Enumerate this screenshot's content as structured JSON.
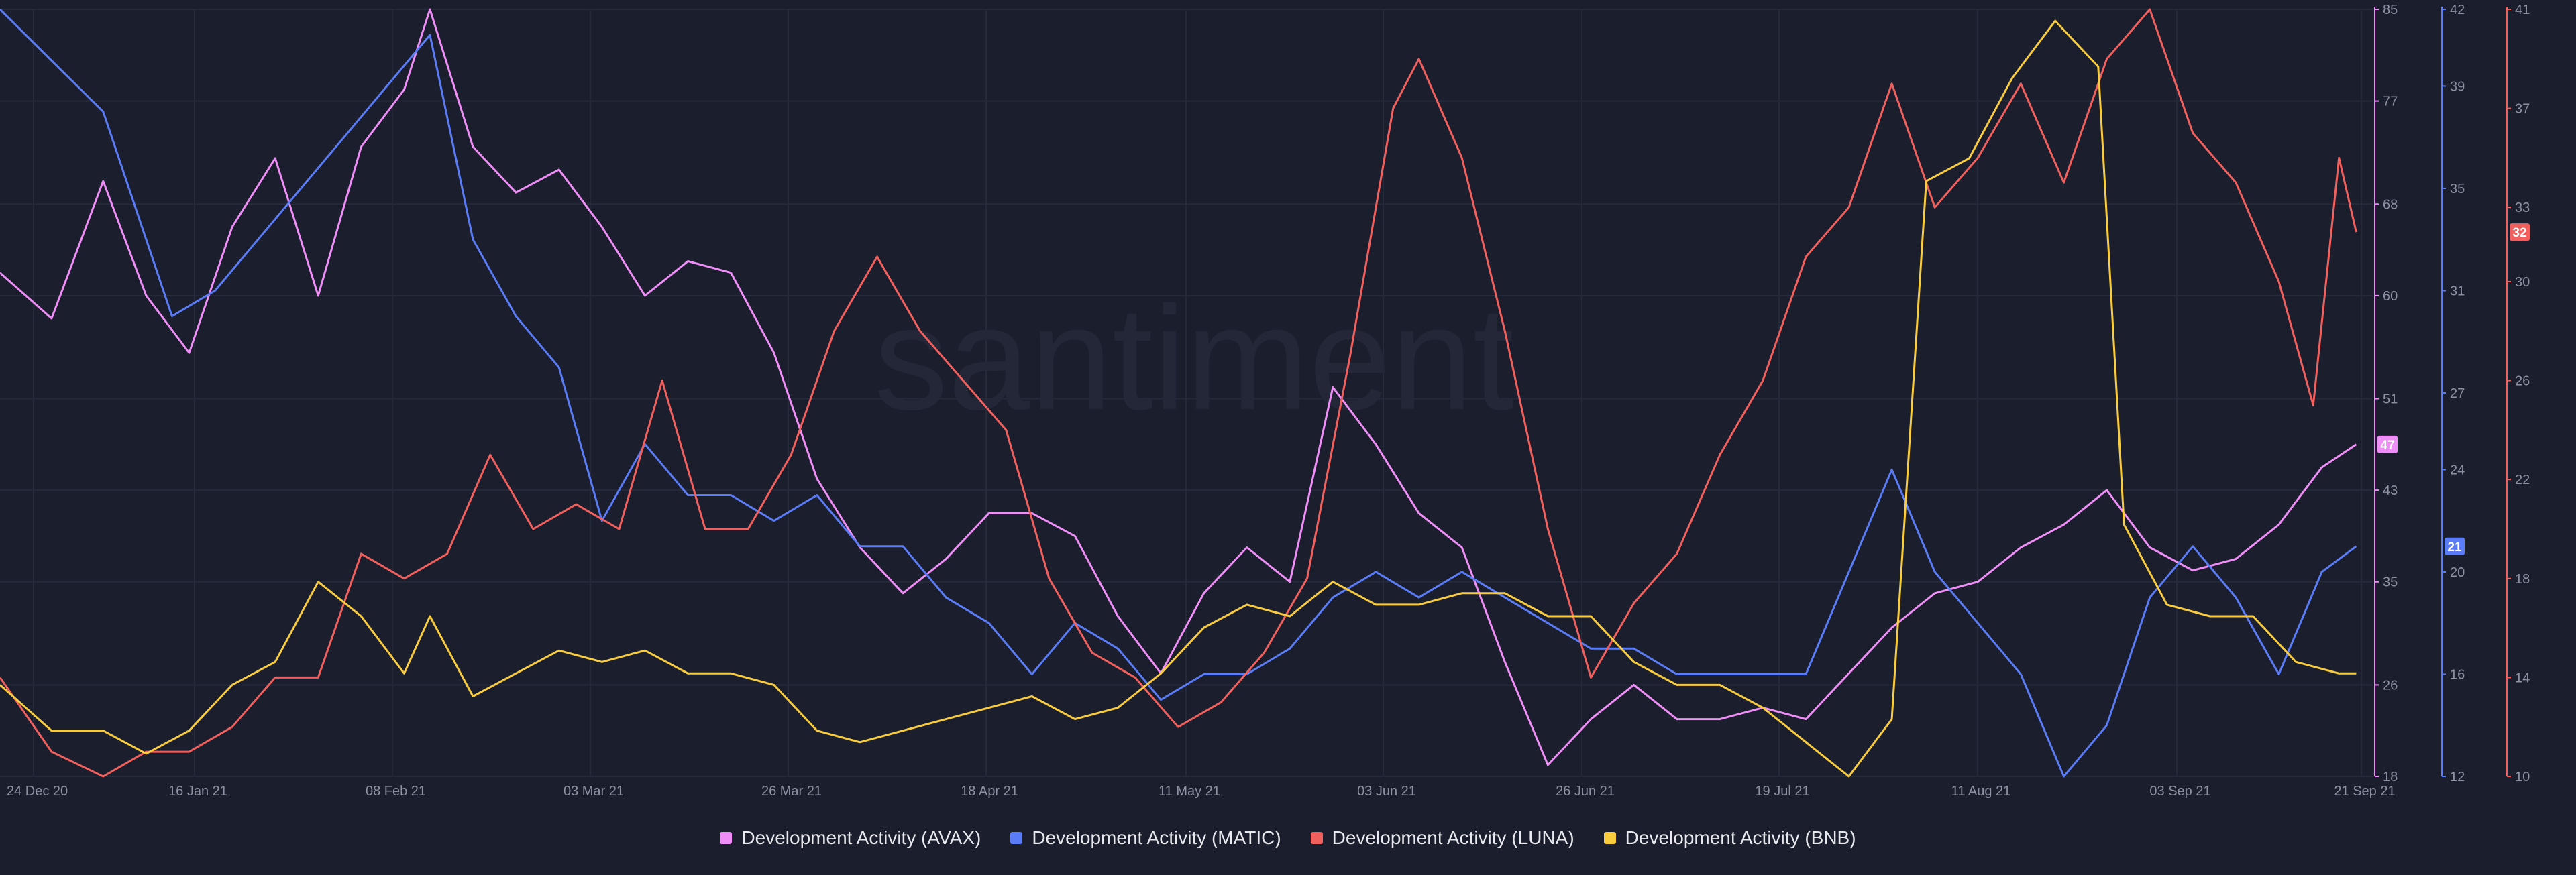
{
  "watermark": "santiment",
  "colors": {
    "background": "#1b1e2d",
    "grid": "#252a3b",
    "avax": "#f08ef7",
    "matic": "#5b7cf7",
    "luna": "#f2605e",
    "bnb": "#f9cc3e"
  },
  "chart_data": {
    "type": "line",
    "x_ticks": [
      "24 Dec 20",
      "16 Jan 21",
      "08 Feb 21",
      "03 Mar 21",
      "26 Mar 21",
      "18 Apr 21",
      "11 May 21",
      "03 Jun 21",
      "26 Jun 21",
      "19 Jul 21",
      "11 Aug 21",
      "03 Sep 21",
      "21 Sep 21"
    ],
    "xlim": [
      "2020-12-20",
      "2021-09-22"
    ],
    "grid": true,
    "legend_position": "bottom",
    "axes": [
      {
        "id": "avax",
        "ticks": [
          18,
          26,
          35,
          43,
          51,
          60,
          68,
          77,
          85
        ],
        "ylim": [
          18,
          85
        ],
        "last_value": "47",
        "color": "#f08ef7"
      },
      {
        "id": "matic",
        "ticks": [
          12,
          16,
          20,
          24,
          27,
          31,
          35,
          39,
          42
        ],
        "ylim": [
          12,
          42
        ],
        "last_value": "21",
        "color": "#5b7cf7"
      },
      {
        "id": "luna",
        "ticks": [
          10,
          14,
          18,
          22,
          26,
          30,
          33,
          37,
          41
        ],
        "ylim": [
          10,
          41
        ],
        "last_value": "32",
        "color": "#f2605e"
      }
    ],
    "series": [
      {
        "name": "Development Activity (AVAX)",
        "axis": "avax",
        "color": "#f08ef7",
        "points": [
          [
            "2020-12-20",
            62
          ],
          [
            "2020-12-26",
            58
          ],
          [
            "2021-01-01",
            70
          ],
          [
            "2021-01-06",
            60
          ],
          [
            "2021-01-11",
            55
          ],
          [
            "2021-01-16",
            66
          ],
          [
            "2021-01-21",
            72
          ],
          [
            "2021-01-26",
            60
          ],
          [
            "2021-01-31",
            73
          ],
          [
            "2021-02-05",
            78
          ],
          [
            "2021-02-08",
            85
          ],
          [
            "2021-02-13",
            73
          ],
          [
            "2021-02-18",
            69
          ],
          [
            "2021-02-23",
            71
          ],
          [
            "2021-02-28",
            66
          ],
          [
            "2021-03-05",
            60
          ],
          [
            "2021-03-10",
            63
          ],
          [
            "2021-03-15",
            62
          ],
          [
            "2021-03-20",
            55
          ],
          [
            "2021-03-25",
            44
          ],
          [
            "2021-03-30",
            38
          ],
          [
            "2021-04-04",
            34
          ],
          [
            "2021-04-09",
            37
          ],
          [
            "2021-04-14",
            41
          ],
          [
            "2021-04-19",
            41
          ],
          [
            "2021-04-24",
            39
          ],
          [
            "2021-04-29",
            32
          ],
          [
            "2021-05-04",
            27
          ],
          [
            "2021-05-09",
            34
          ],
          [
            "2021-05-14",
            38
          ],
          [
            "2021-05-19",
            35
          ],
          [
            "2021-05-24",
            52
          ],
          [
            "2021-05-29",
            47
          ],
          [
            "2021-06-03",
            41
          ],
          [
            "2021-06-08",
            38
          ],
          [
            "2021-06-13",
            28
          ],
          [
            "2021-06-18",
            19
          ],
          [
            "2021-06-23",
            23
          ],
          [
            "2021-06-28",
            26
          ],
          [
            "2021-07-03",
            23
          ],
          [
            "2021-07-08",
            23
          ],
          [
            "2021-07-13",
            24
          ],
          [
            "2021-07-18",
            23
          ],
          [
            "2021-07-23",
            27
          ],
          [
            "2021-07-28",
            31
          ],
          [
            "2021-08-02",
            34
          ],
          [
            "2021-08-07",
            35
          ],
          [
            "2021-08-12",
            38
          ],
          [
            "2021-08-17",
            40
          ],
          [
            "2021-08-22",
            43
          ],
          [
            "2021-08-27",
            38
          ],
          [
            "2021-09-01",
            36
          ],
          [
            "2021-09-06",
            37
          ],
          [
            "2021-09-11",
            40
          ],
          [
            "2021-09-16",
            45
          ],
          [
            "2021-09-20",
            47
          ]
        ]
      },
      {
        "name": "Development Activity (MATIC)",
        "axis": "matic",
        "color": "#5b7cf7",
        "points": [
          [
            "2020-12-20",
            42
          ],
          [
            "2020-12-26",
            40
          ],
          [
            "2021-01-01",
            38
          ],
          [
            "2021-01-05",
            34
          ],
          [
            "2021-01-09",
            30
          ],
          [
            "2021-01-14",
            31
          ],
          [
            "2021-01-19",
            33
          ],
          [
            "2021-01-24",
            35
          ],
          [
            "2021-01-29",
            37
          ],
          [
            "2021-02-03",
            39
          ],
          [
            "2021-02-08",
            41
          ],
          [
            "2021-02-13",
            33
          ],
          [
            "2021-02-18",
            30
          ],
          [
            "2021-02-23",
            28
          ],
          [
            "2021-02-28",
            22
          ],
          [
            "2021-03-05",
            25
          ],
          [
            "2021-03-10",
            23
          ],
          [
            "2021-03-15",
            23
          ],
          [
            "2021-03-20",
            22
          ],
          [
            "2021-03-25",
            23
          ],
          [
            "2021-03-30",
            21
          ],
          [
            "2021-04-04",
            21
          ],
          [
            "2021-04-09",
            19
          ],
          [
            "2021-04-14",
            18
          ],
          [
            "2021-04-19",
            16
          ],
          [
            "2021-04-24",
            18
          ],
          [
            "2021-04-29",
            17
          ],
          [
            "2021-05-04",
            15
          ],
          [
            "2021-05-09",
            16
          ],
          [
            "2021-05-14",
            16
          ],
          [
            "2021-05-19",
            17
          ],
          [
            "2021-05-24",
            19
          ],
          [
            "2021-05-29",
            20
          ],
          [
            "2021-06-03",
            19
          ],
          [
            "2021-06-08",
            20
          ],
          [
            "2021-06-13",
            19
          ],
          [
            "2021-06-18",
            18
          ],
          [
            "2021-06-23",
            17
          ],
          [
            "2021-06-28",
            17
          ],
          [
            "2021-07-03",
            16
          ],
          [
            "2021-07-08",
            16
          ],
          [
            "2021-07-13",
            16
          ],
          [
            "2021-07-18",
            16
          ],
          [
            "2021-07-23",
            20
          ],
          [
            "2021-07-28",
            24
          ],
          [
            "2021-08-02",
            20
          ],
          [
            "2021-08-07",
            18
          ],
          [
            "2021-08-12",
            16
          ],
          [
            "2021-08-17",
            12
          ],
          [
            "2021-08-22",
            14
          ],
          [
            "2021-08-27",
            19
          ],
          [
            "2021-09-01",
            21
          ],
          [
            "2021-09-06",
            19
          ],
          [
            "2021-09-11",
            16
          ],
          [
            "2021-09-16",
            20
          ],
          [
            "2021-09-20",
            21
          ]
        ]
      },
      {
        "name": "Development Activity (LUNA)",
        "axis": "luna",
        "color": "#f2605e",
        "points": [
          [
            "2020-12-20",
            14
          ],
          [
            "2020-12-26",
            11
          ],
          [
            "2021-01-01",
            10
          ],
          [
            "2021-01-06",
            11
          ],
          [
            "2021-01-11",
            11
          ],
          [
            "2021-01-16",
            12
          ],
          [
            "2021-01-21",
            14
          ],
          [
            "2021-01-26",
            14
          ],
          [
            "2021-01-31",
            19
          ],
          [
            "2021-02-05",
            18
          ],
          [
            "2021-02-10",
            19
          ],
          [
            "2021-02-15",
            23
          ],
          [
            "2021-02-20",
            20
          ],
          [
            "2021-02-25",
            21
          ],
          [
            "2021-03-02",
            20
          ],
          [
            "2021-03-07",
            26
          ],
          [
            "2021-03-12",
            20
          ],
          [
            "2021-03-17",
            20
          ],
          [
            "2021-03-22",
            23
          ],
          [
            "2021-03-27",
            28
          ],
          [
            "2021-04-01",
            31
          ],
          [
            "2021-04-06",
            28
          ],
          [
            "2021-04-11",
            26
          ],
          [
            "2021-04-16",
            24
          ],
          [
            "2021-04-21",
            18
          ],
          [
            "2021-04-26",
            15
          ],
          [
            "2021-05-01",
            14
          ],
          [
            "2021-05-06",
            12
          ],
          [
            "2021-05-11",
            13
          ],
          [
            "2021-05-16",
            15
          ],
          [
            "2021-05-21",
            18
          ],
          [
            "2021-05-26",
            27
          ],
          [
            "2021-05-31",
            37
          ],
          [
            "2021-06-03",
            39
          ],
          [
            "2021-06-08",
            35
          ],
          [
            "2021-06-13",
            28
          ],
          [
            "2021-06-18",
            20
          ],
          [
            "2021-06-23",
            14
          ],
          [
            "2021-06-28",
            17
          ],
          [
            "2021-07-03",
            19
          ],
          [
            "2021-07-08",
            23
          ],
          [
            "2021-07-13",
            26
          ],
          [
            "2021-07-18",
            31
          ],
          [
            "2021-07-23",
            33
          ],
          [
            "2021-07-28",
            38
          ],
          [
            "2021-08-02",
            33
          ],
          [
            "2021-08-07",
            35
          ],
          [
            "2021-08-12",
            38
          ],
          [
            "2021-08-17",
            34
          ],
          [
            "2021-08-22",
            39
          ],
          [
            "2021-08-27",
            41
          ],
          [
            "2021-09-01",
            36
          ],
          [
            "2021-09-06",
            34
          ],
          [
            "2021-09-11",
            30
          ],
          [
            "2021-09-15",
            25
          ],
          [
            "2021-09-18",
            35
          ],
          [
            "2021-09-20",
            32
          ]
        ]
      },
      {
        "name": "Development Activity (BNB)",
        "axis": "avax",
        "color": "#f9cc3e",
        "points": [
          [
            "2020-12-20",
            26
          ],
          [
            "2020-12-26",
            22
          ],
          [
            "2021-01-01",
            22
          ],
          [
            "2021-01-06",
            20
          ],
          [
            "2021-01-11",
            22
          ],
          [
            "2021-01-16",
            26
          ],
          [
            "2021-01-21",
            28
          ],
          [
            "2021-01-26",
            35
          ],
          [
            "2021-01-31",
            32
          ],
          [
            "2021-02-05",
            27
          ],
          [
            "2021-02-08",
            32
          ],
          [
            "2021-02-13",
            25
          ],
          [
            "2021-02-18",
            27
          ],
          [
            "2021-02-23",
            29
          ],
          [
            "2021-02-28",
            28
          ],
          [
            "2021-03-05",
            29
          ],
          [
            "2021-03-10",
            27
          ],
          [
            "2021-03-15",
            27
          ],
          [
            "2021-03-20",
            26
          ],
          [
            "2021-03-25",
            22
          ],
          [
            "2021-03-30",
            21
          ],
          [
            "2021-04-04",
            22
          ],
          [
            "2021-04-09",
            23
          ],
          [
            "2021-04-14",
            24
          ],
          [
            "2021-04-19",
            25
          ],
          [
            "2021-04-24",
            23
          ],
          [
            "2021-04-29",
            24
          ],
          [
            "2021-05-04",
            27
          ],
          [
            "2021-05-09",
            31
          ],
          [
            "2021-05-14",
            33
          ],
          [
            "2021-05-19",
            32
          ],
          [
            "2021-05-24",
            35
          ],
          [
            "2021-05-29",
            33
          ],
          [
            "2021-06-03",
            33
          ],
          [
            "2021-06-08",
            34
          ],
          [
            "2021-06-13",
            34
          ],
          [
            "2021-06-18",
            32
          ],
          [
            "2021-06-23",
            32
          ],
          [
            "2021-06-28",
            28
          ],
          [
            "2021-07-03",
            26
          ],
          [
            "2021-07-08",
            26
          ],
          [
            "2021-07-13",
            24
          ],
          [
            "2021-07-18",
            21
          ],
          [
            "2021-07-23",
            18
          ],
          [
            "2021-07-28",
            23
          ],
          [
            "2021-08-01",
            70
          ],
          [
            "2021-08-06",
            72
          ],
          [
            "2021-08-11",
            79
          ],
          [
            "2021-08-16",
            84
          ],
          [
            "2021-08-21",
            80
          ],
          [
            "2021-08-24",
            40
          ],
          [
            "2021-08-29",
            33
          ],
          [
            "2021-09-03",
            32
          ],
          [
            "2021-09-08",
            32
          ],
          [
            "2021-09-13",
            28
          ],
          [
            "2021-09-18",
            27
          ],
          [
            "2021-09-20",
            27
          ]
        ]
      }
    ]
  }
}
